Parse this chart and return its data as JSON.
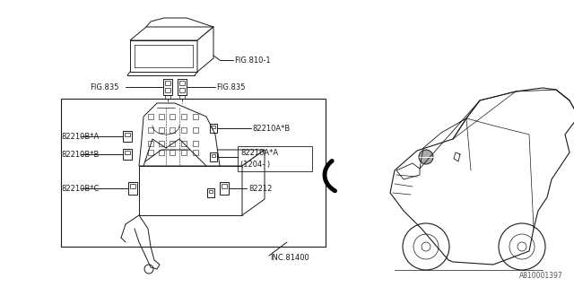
{
  "bg_color": "#ffffff",
  "line_color": "#1a1a1a",
  "text_color": "#1a1a1a",
  "font_size": 6.0,
  "watermark": "A810001397",
  "labels": {
    "fig810": "FIG.810-1",
    "fig835_left": "FIG.835",
    "fig835_right": "FIG.835",
    "82210AB": "82210A*B",
    "82210AA_line1": "82210A*A",
    "82210AA_line2": "(1204- )",
    "82210BA": "82210B*A",
    "82210BB": "82210B*B",
    "82210BC": "82210B*C",
    "82212": "82212",
    "inc81400": "INC.81400"
  }
}
